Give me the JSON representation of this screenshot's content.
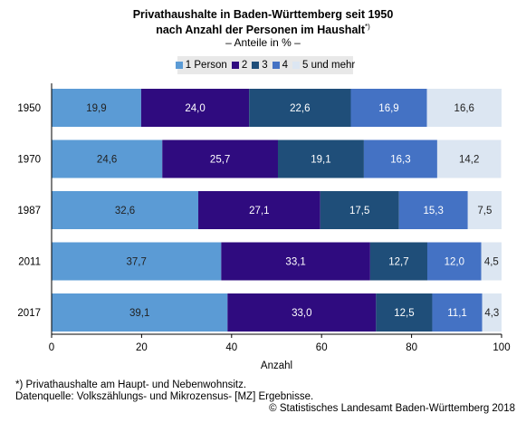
{
  "title": {
    "line1": "Privathaushalte in Baden-Württemberg seit 1950",
    "line2": "nach Anzahl der Personen im Haushalt",
    "marker": "*)",
    "subtitle": "– Anteile in % –"
  },
  "colors": {
    "1 Person": "#5b9bd5",
    "2": "#2f0b7f",
    "3": "#1f4e79",
    "4": "#4472c4",
    "5 und mehr": "#dce6f2"
  },
  "footnotes": {
    "note": "*) Privathaushalte am Haupt- und Nebenwohnsitz.",
    "source": "Datenquelle: Volkszählungs- und Mikrozensus- [MZ] Ergebnisse.",
    "copyright": "© Statistisches Landesamt Baden-Württemberg 2018"
  },
  "chart_data": {
    "type": "bar",
    "orientation": "horizontal",
    "stacked": true,
    "categories": [
      "1950",
      "1970",
      "1987",
      "2011",
      "2017"
    ],
    "series": [
      {
        "name": "1 Person",
        "values": [
          19.9,
          24.6,
          32.6,
          37.7,
          39.1
        ],
        "labels": [
          "19,9",
          "24,6",
          "32,6",
          "37,7",
          "39,1"
        ]
      },
      {
        "name": "2",
        "values": [
          24.0,
          25.7,
          27.1,
          33.1,
          33.0
        ],
        "labels": [
          "24,0",
          "25,7",
          "27,1",
          "33,1",
          "33,0"
        ]
      },
      {
        "name": "3",
        "values": [
          22.6,
          19.1,
          17.5,
          12.7,
          12.5
        ],
        "labels": [
          "22,6",
          "19,1",
          "17,5",
          "12,7",
          "12,5"
        ]
      },
      {
        "name": "4",
        "values": [
          16.9,
          16.3,
          15.3,
          12.0,
          11.1
        ],
        "labels": [
          "16,9",
          "16,3",
          "15,3",
          "12,0",
          "11,1"
        ]
      },
      {
        "name": "5 und mehr",
        "values": [
          16.6,
          14.2,
          7.5,
          4.5,
          4.3
        ],
        "labels": [
          "16,6",
          "14,2",
          "7,5",
          "4,5",
          "4,3"
        ]
      }
    ],
    "xlabel": "Anzahl",
    "xlim": [
      0,
      100
    ],
    "xticks": [
      "0",
      "20",
      "40",
      "60",
      "80",
      "100"
    ],
    "legend_position": "top",
    "grid": false
  }
}
